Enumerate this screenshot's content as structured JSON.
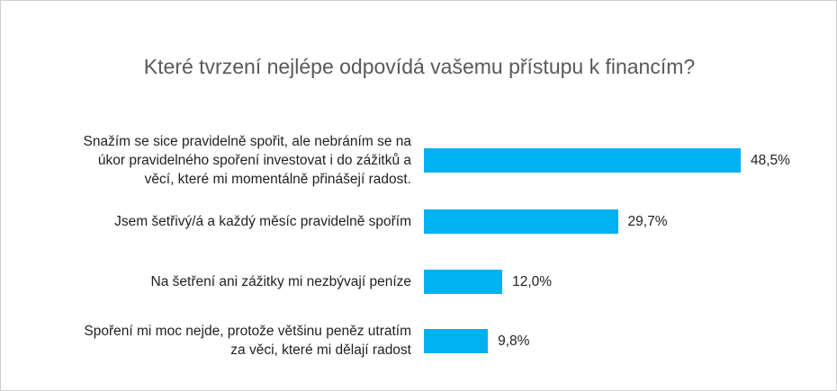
{
  "chart_data": {
    "type": "bar",
    "orientation": "horizontal",
    "title": "Které tvrzení nejlépe odpovídá vašemu přístupu k financím?",
    "categories": [
      [
        "Snažím se sice pravidelně spořit, ale nebráním se na",
        "úkor pravidelného spoření investovat i do zážitků a",
        "věcí, které mi momentálně přinášejí radost."
      ],
      [
        "Jsem šetřivý/á a každý měsíc pravidelně spořím"
      ],
      [
        "Na šetření ani zážitky mi nezbývají peníze"
      ],
      [
        "Spoření mi moc nejde, protože většinu peněz utratím",
        "za věci, které mi dělají radost"
      ]
    ],
    "values": [
      48.5,
      29.7,
      12.0,
      9.8
    ],
    "value_labels": [
      "48,5%",
      "29,7%",
      "12,0%",
      "9,8%"
    ],
    "xlim": [
      0,
      48.5
    ],
    "color": "#00b0f0",
    "grid": false,
    "legend": "none"
  }
}
